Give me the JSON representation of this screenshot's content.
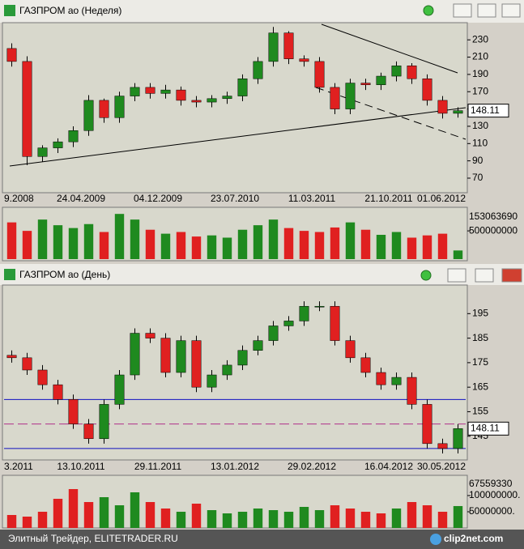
{
  "chart_data": [
    {
      "type": "candlestick",
      "title": "ГАЗПРОМ ао (Неделя)",
      "categories": [
        "9.2008",
        "24.04.2009",
        "04.12.2009",
        "23.07.2010",
        "11.03.2011",
        "21.10.2011",
        "01.06.2012"
      ],
      "open": [
        220,
        205,
        95,
        105,
        112,
        125,
        160,
        140,
        165,
        175,
        168,
        172,
        160,
        158,
        162,
        165,
        185,
        205,
        238,
        208,
        205,
        175,
        150,
        180,
        178,
        188,
        200,
        185,
        160,
        145
      ],
      "high": [
        226,
        211,
        108,
        116,
        130,
        166,
        162,
        170,
        180,
        180,
        178,
        176,
        165,
        166,
        170,
        190,
        210,
        245,
        240,
        212,
        210,
        180,
        185,
        185,
        192,
        205,
        203,
        190,
        165,
        152
      ],
      "low": [
        199,
        85,
        89,
        99,
        106,
        119,
        134,
        134,
        159,
        162,
        162,
        154,
        152,
        152,
        156,
        159,
        179,
        199,
        202,
        199,
        169,
        144,
        144,
        172,
        172,
        182,
        179,
        154,
        139,
        140
      ],
      "close": [
        205,
        95,
        105,
        112,
        125,
        160,
        140,
        165,
        175,
        168,
        172,
        160,
        158,
        162,
        165,
        185,
        205,
        238,
        208,
        205,
        175,
        150,
        180,
        178,
        188,
        200,
        185,
        160,
        145,
        148.11
      ],
      "up_color": "#1f8a1f",
      "down_color": "#e02020",
      "ylim": [
        55,
        248
      ],
      "yticks": [
        70,
        90,
        110,
        130,
        150,
        170,
        190,
        210,
        230
      ],
      "volume": {
        "label": "153063690",
        "values": [
          650000000,
          500000000,
          700000000,
          600000000,
          550000000,
          620000000,
          480000000,
          800000000,
          700000000,
          520000000,
          450000000,
          480000000,
          400000000,
          420000000,
          380000000,
          520000000,
          600000000,
          700000000,
          550000000,
          500000000,
          480000000,
          560000000,
          650000000,
          520000000,
          430000000,
          480000000,
          380000000,
          420000000,
          450000000,
          153063690
        ],
        "ylim": [
          0,
          860000000
        ],
        "yticks": [
          500000000
        ]
      }
    },
    {
      "type": "candlestick",
      "title": "ГАЗПРОМ ао (День)",
      "categories": [
        "3.2011",
        "13.10.2011",
        "29.11.2011",
        "13.01.2012",
        "29.02.2012",
        "16.04.2012",
        "30.05.2012"
      ],
      "open": [
        178,
        177,
        172,
        166,
        160,
        150,
        144,
        158,
        170,
        187,
        185,
        171,
        184,
        165,
        170,
        174,
        180,
        184,
        190,
        192,
        198,
        198,
        184,
        177,
        171,
        166,
        169,
        158,
        142,
        140
      ],
      "high": [
        180,
        179,
        174,
        168,
        162,
        152,
        160,
        172,
        189,
        189,
        187,
        186,
        186,
        172,
        176,
        182,
        186,
        192,
        194,
        200,
        200,
        200,
        186,
        179,
        173,
        171,
        171,
        160,
        144,
        150
      ],
      "low": [
        175,
        170,
        164,
        158,
        148,
        142,
        142,
        156,
        168,
        183,
        169,
        169,
        163,
        163,
        168,
        172,
        178,
        182,
        188,
        190,
        196,
        182,
        175,
        169,
        164,
        164,
        156,
        140,
        138,
        138
      ],
      "close": [
        177,
        172,
        166,
        160,
        150,
        144,
        158,
        170,
        187,
        185,
        171,
        184,
        165,
        170,
        174,
        180,
        184,
        190,
        192,
        198,
        198,
        184,
        177,
        171,
        166,
        169,
        158,
        142,
        140,
        148.11
      ],
      "up_color": "#1f8a1f",
      "down_color": "#e02020",
      "ylim": [
        136,
        206
      ],
      "yticks": [
        145,
        155,
        165,
        175,
        185,
        195
      ],
      "hlines": [
        {
          "value": 160,
          "color": "#1010c0"
        },
        {
          "value": 140,
          "color": "#1010c0"
        },
        {
          "value": 150,
          "color": "#b0308a",
          "dashed": true
        }
      ],
      "volume": {
        "label": "67559330",
        "values": [
          40000000,
          35000000,
          50000000,
          90000000,
          120000000,
          80000000,
          95000000,
          70000000,
          110000000,
          80000000,
          60000000,
          50000000,
          75000000,
          55000000,
          45000000,
          50000000,
          60000000,
          55000000,
          50000000,
          65000000,
          55000000,
          70000000,
          60000000,
          50000000,
          45000000,
          60000000,
          80000000,
          70000000,
          50000000,
          67559330
        ],
        "ylim": [
          0,
          155000000
        ],
        "yticks": [
          {
            "value": 100000000,
            "label": "100000000."
          },
          {
            "value": 50000000,
            "label": "50000000."
          }
        ]
      }
    }
  ],
  "footer": "Элитный Трейдер, ELITETRADER.RU",
  "logo": "clip2net.com"
}
